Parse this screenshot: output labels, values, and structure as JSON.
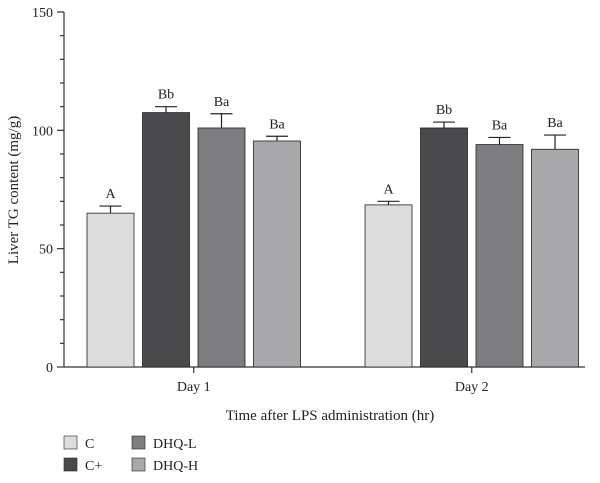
{
  "chart_data": {
    "type": "bar",
    "ylabel": "Liver TG content (mg/g)",
    "xlabel": "Time after LPS administration (hr)",
    "categories": [
      "Day 1",
      "Day 2"
    ],
    "ylim": [
      0,
      150
    ],
    "yticks": [
      0,
      50,
      100,
      150
    ],
    "grid": false,
    "legend_position": "bottom-left",
    "series": [
      {
        "name": "C",
        "color": "#dcdcdc",
        "values": [
          65,
          68.5
        ],
        "errors": [
          3,
          1.5
        ],
        "labels": [
          "A",
          "A"
        ]
      },
      {
        "name": "C+",
        "color": "#4a4a4c",
        "values": [
          107.5,
          101
        ],
        "errors": [
          2.5,
          2.5
        ],
        "labels": [
          "Bb",
          "Bb"
        ]
      },
      {
        "name": "DHQ-L",
        "color": "#7d7d80",
        "values": [
          101,
          94
        ],
        "errors": [
          6,
          3
        ],
        "labels": [
          "Ba",
          "Ba"
        ]
      },
      {
        "name": "DHQ-H",
        "color": "#a8a8aa",
        "values": [
          95.5,
          92
        ],
        "errors": [
          2,
          6
        ],
        "labels": [
          "Ba",
          "Ba"
        ]
      }
    ]
  }
}
